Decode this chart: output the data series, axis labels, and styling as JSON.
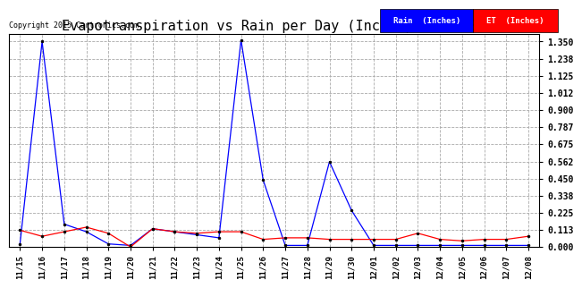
{
  "title": "Evapotranspiration vs Rain per Day (Inches) 20151209",
  "copyright": "Copyright 2015 Cartronics.com",
  "x_labels": [
    "11/15",
    "11/16",
    "11/17",
    "11/18",
    "11/19",
    "11/20",
    "11/21",
    "11/22",
    "11/23",
    "11/24",
    "11/25",
    "11/26",
    "11/27",
    "11/28",
    "11/29",
    "11/30",
    "12/01",
    "12/02",
    "12/03",
    "12/04",
    "12/05",
    "12/06",
    "12/07",
    "12/08"
  ],
  "rain_values": [
    0.02,
    1.35,
    0.15,
    0.1,
    0.02,
    0.01,
    0.12,
    0.1,
    0.08,
    0.06,
    1.36,
    0.44,
    0.01,
    0.01,
    0.56,
    0.24,
    0.01,
    0.01,
    0.01,
    0.01,
    0.01,
    0.01,
    0.01,
    0.01
  ],
  "et_values": [
    0.11,
    0.07,
    0.1,
    0.13,
    0.09,
    0.0,
    0.12,
    0.1,
    0.09,
    0.1,
    0.1,
    0.05,
    0.06,
    0.06,
    0.05,
    0.05,
    0.05,
    0.05,
    0.09,
    0.05,
    0.04,
    0.05,
    0.05,
    0.07
  ],
  "rain_color": "#0000ff",
  "et_color": "#ff0000",
  "background_color": "#ffffff",
  "grid_color": "#aaaaaa",
  "title_fontsize": 11,
  "yticks": [
    0.0,
    0.113,
    0.225,
    0.338,
    0.45,
    0.562,
    0.675,
    0.787,
    0.9,
    1.012,
    1.125,
    1.238,
    1.35
  ],
  "ylim": [
    0.0,
    1.4
  ],
  "legend_rain_bg": "#0000ff",
  "legend_et_bg": "#ff0000",
  "legend_rain_label": "Rain  (Inches)",
  "legend_et_label": "ET  (Inches)"
}
